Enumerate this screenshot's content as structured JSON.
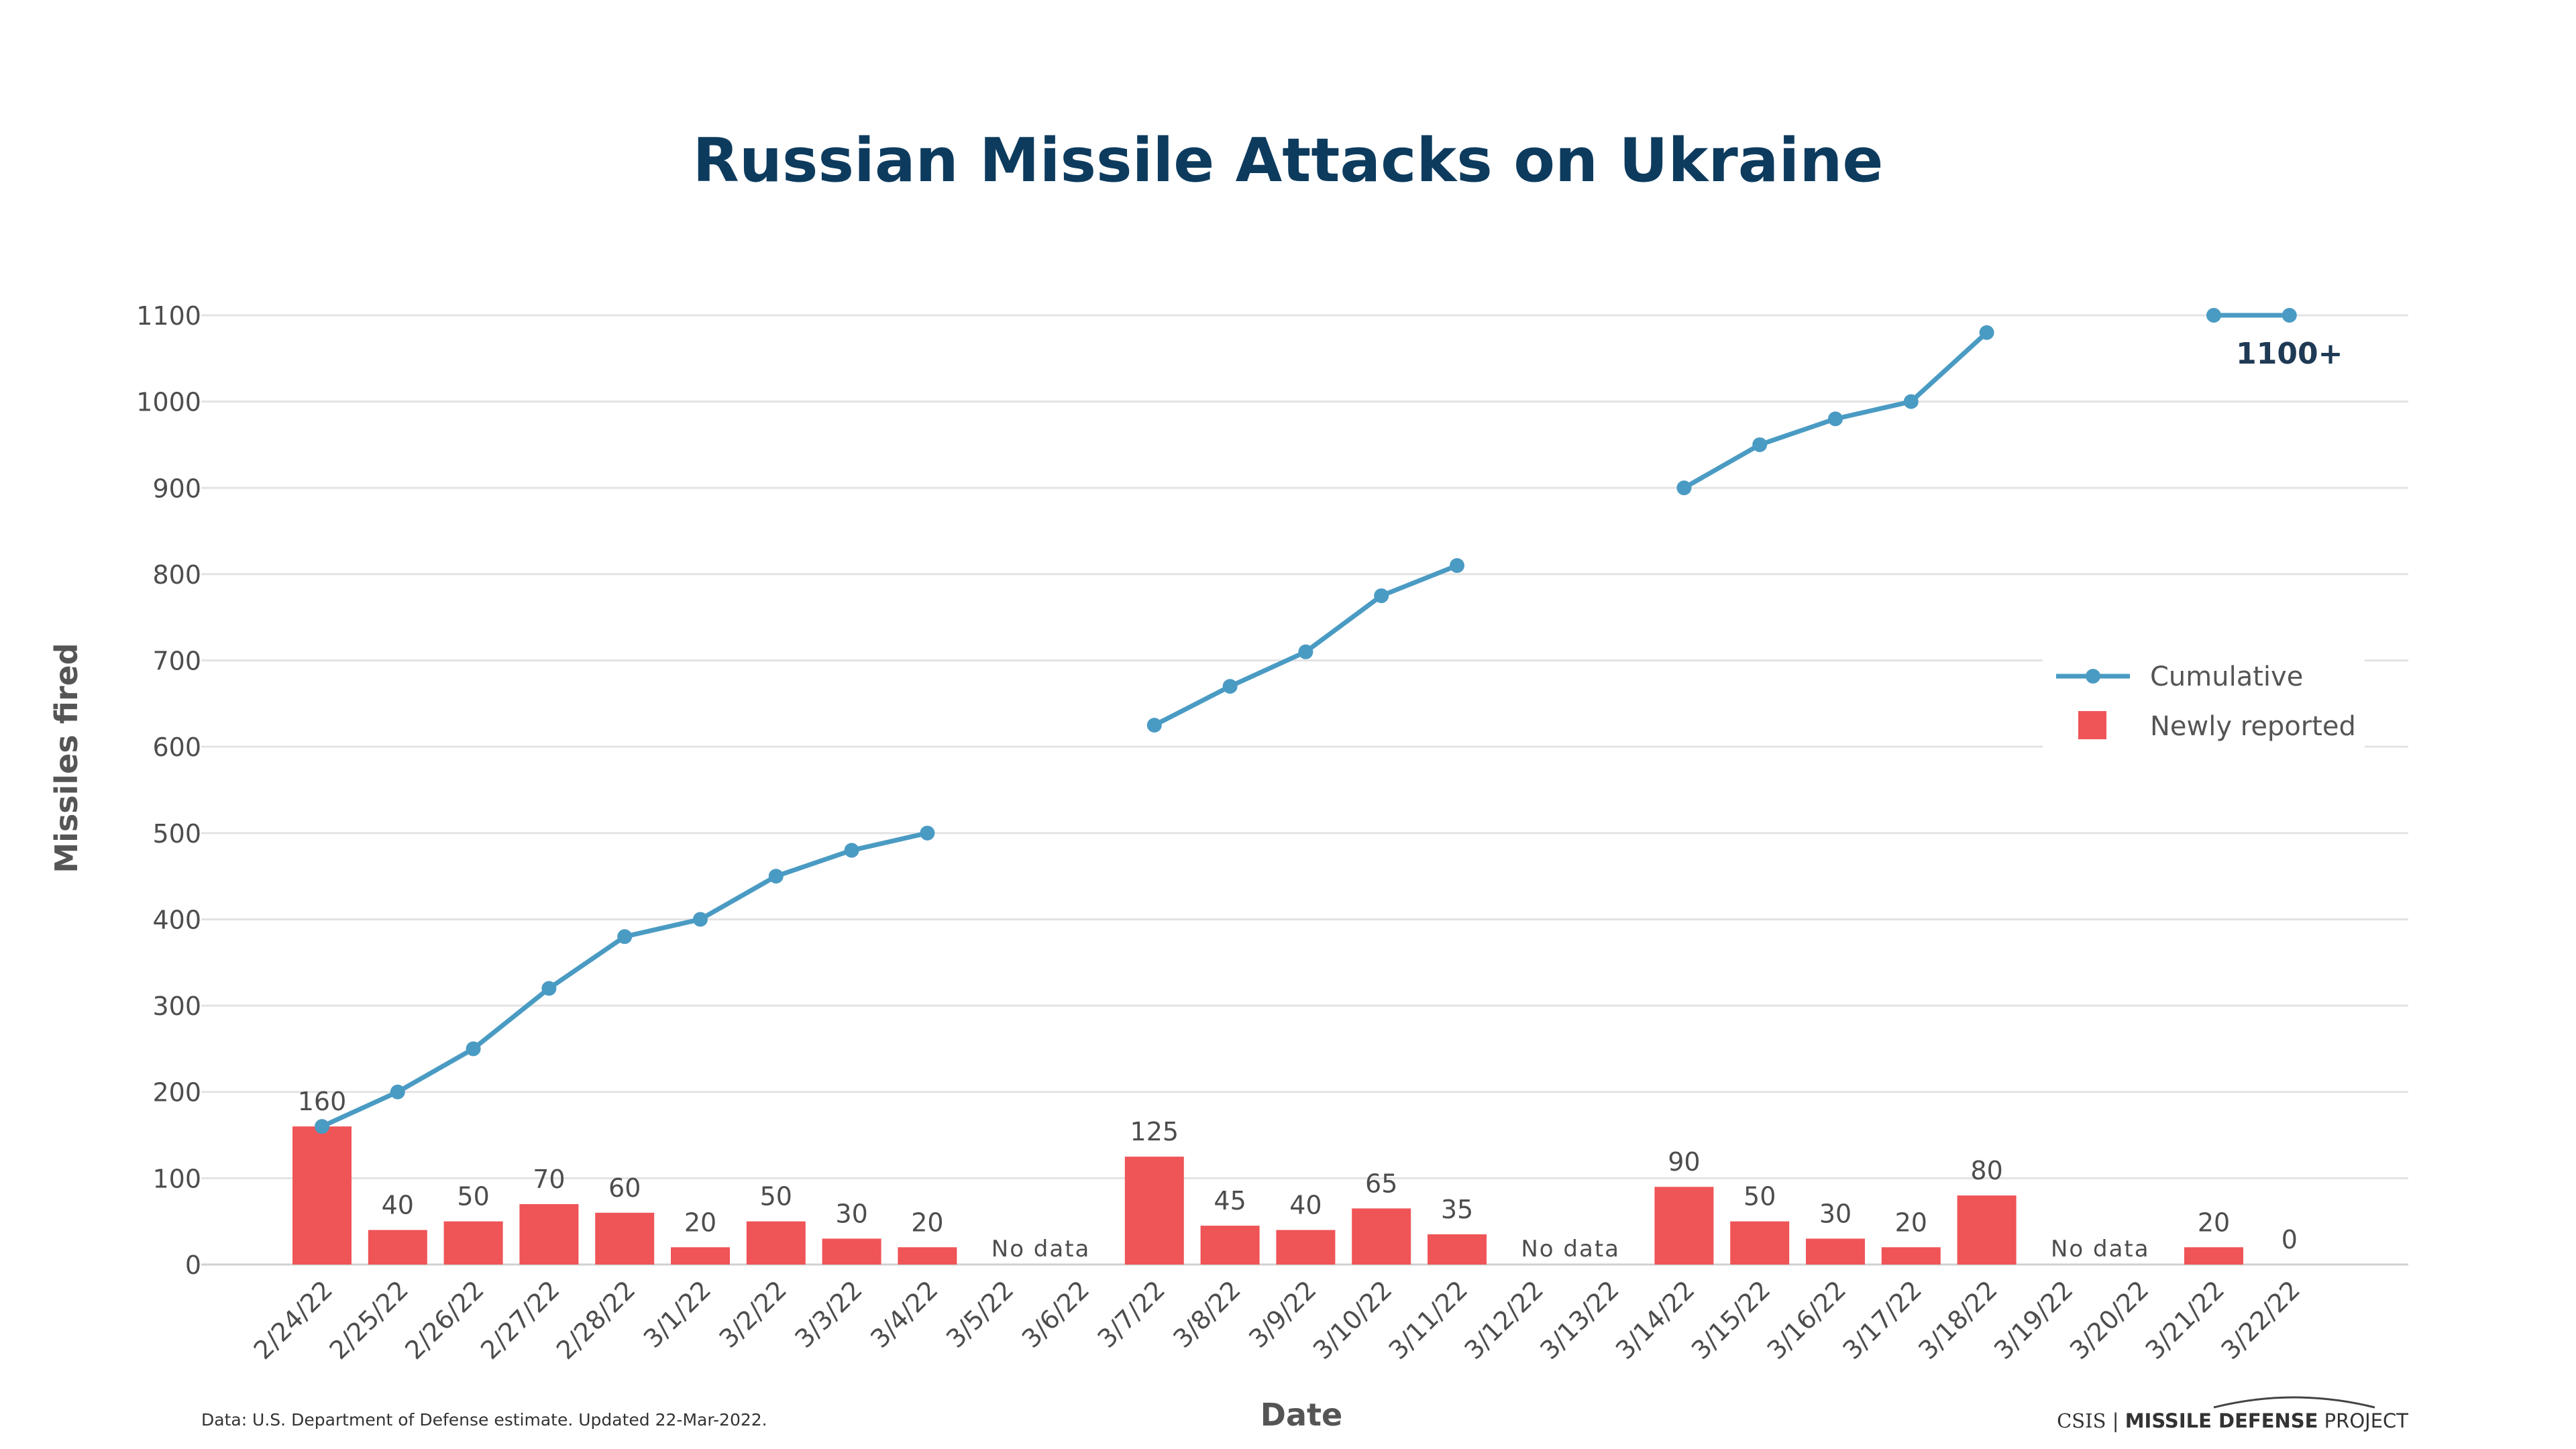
{
  "chart_data": {
    "type": "bar",
    "title": "Russian Missile Attacks on Ukraine",
    "xlabel": "Date",
    "ylabel": "Missiles fired",
    "ylim": [
      0,
      1100
    ],
    "yticks": [
      0,
      100,
      200,
      300,
      400,
      500,
      600,
      700,
      800,
      900,
      1000,
      1100
    ],
    "grid": true,
    "legend_position": "right",
    "categories": [
      "2/24/22",
      "2/25/22",
      "2/26/22",
      "2/27/22",
      "2/28/22",
      "3/1/22",
      "3/2/22",
      "3/3/22",
      "3/4/22",
      "3/5/22",
      "3/6/22",
      "3/7/22",
      "3/8/22",
      "3/9/22",
      "3/10/22",
      "3/11/22",
      "3/12/22",
      "3/13/22",
      "3/14/22",
      "3/15/22",
      "3/16/22",
      "3/17/22",
      "3/18/22",
      "3/19/22",
      "3/20/22",
      "3/21/22",
      "3/22/22"
    ],
    "series": [
      {
        "name": "Cumulative",
        "type": "line",
        "color": "#4a9bc3",
        "values": [
          160,
          200,
          250,
          320,
          380,
          400,
          450,
          480,
          500,
          null,
          null,
          625,
          670,
          710,
          775,
          810,
          null,
          null,
          900,
          950,
          980,
          1000,
          1080,
          null,
          null,
          1100,
          1100
        ]
      },
      {
        "name": "Newly reported",
        "type": "bar",
        "color": "#ef5457",
        "values": [
          160,
          40,
          50,
          70,
          60,
          20,
          50,
          30,
          20,
          null,
          null,
          125,
          45,
          40,
          65,
          35,
          null,
          null,
          90,
          50,
          30,
          20,
          80,
          null,
          null,
          20,
          0
        ]
      }
    ],
    "no_data_label": "No data",
    "no_data_ranges": [
      {
        "from": "3/5/22",
        "to": "3/6/22"
      },
      {
        "from": "3/12/22",
        "to": "3/13/22"
      },
      {
        "from": "3/19/22",
        "to": "3/20/22"
      }
    ],
    "annotations": [
      {
        "text": "1100+",
        "category": "3/22/22",
        "value": 1100
      }
    ],
    "source": "Data: U.S. Department of Defense estimate. Updated 22-Mar-2022.",
    "credit": {
      "org": "CSIS",
      "project_bold": "MISSILE DEFENSE",
      "project_rest": " PROJECT"
    }
  }
}
